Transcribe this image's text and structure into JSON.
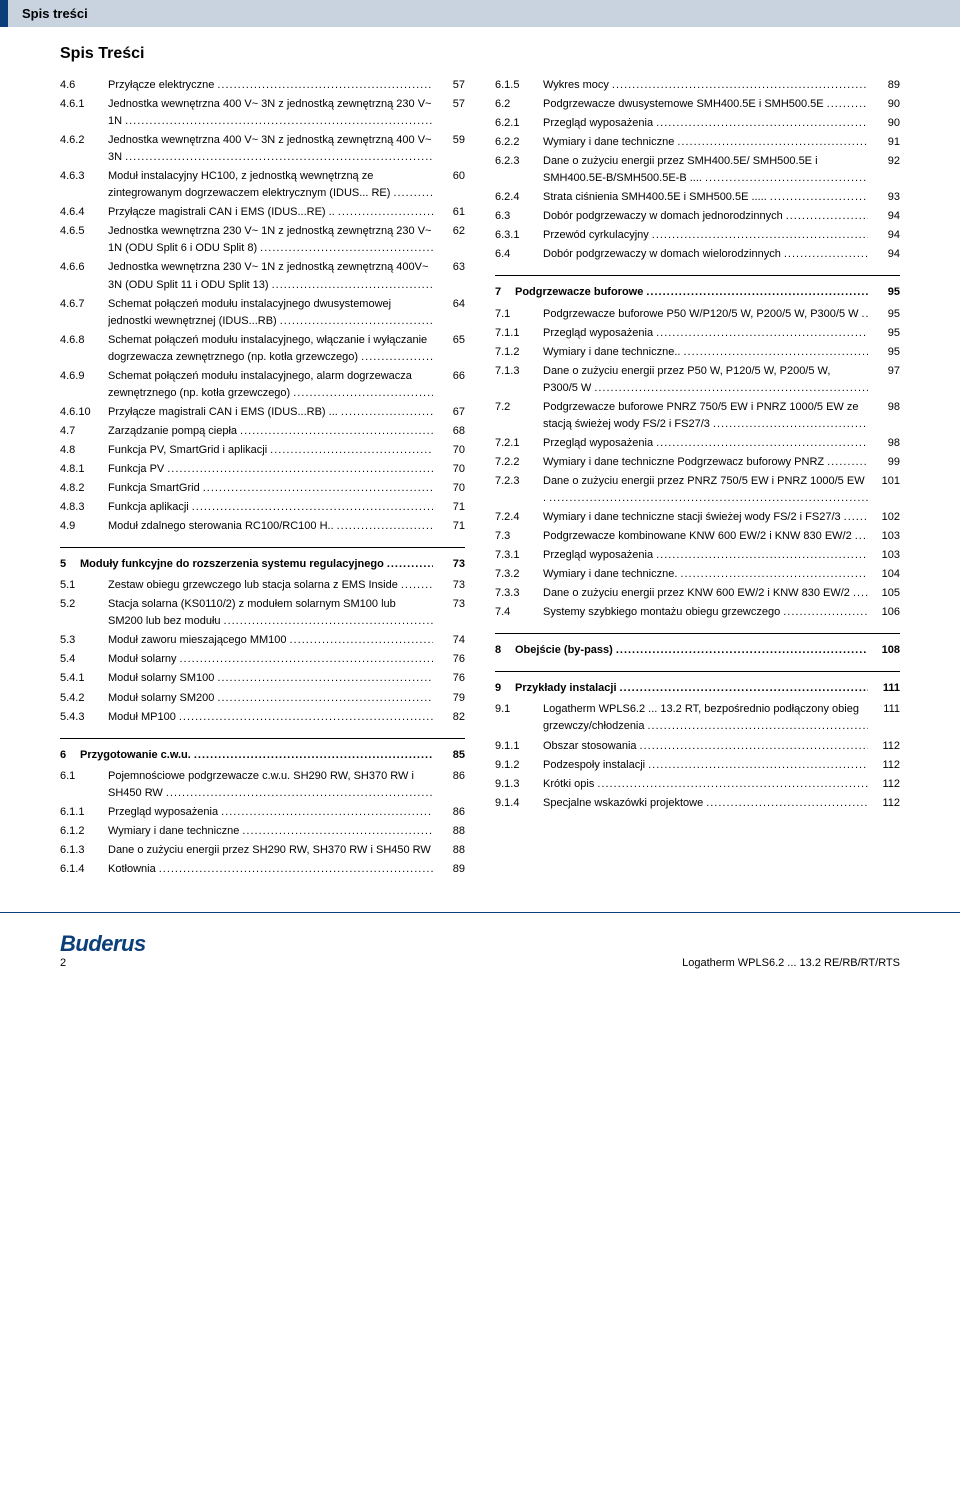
{
  "header": "Spis treści",
  "title": "Spis Treści",
  "left": [
    {
      "n": "4.6",
      "t": "Przyłącze elektryczne",
      "p": "57"
    },
    {
      "n": "4.6.1",
      "t": "Jednostka wewnętrzna 400 V~ 3N z jednostką zewnętrzną 230 V~ 1N",
      "p": "57"
    },
    {
      "n": "4.6.2",
      "t": "Jednostka wewnętrzna 400 V~ 3N z jednostką zewnętrzną 400 V~ 3N",
      "p": "59"
    },
    {
      "n": "4.6.3",
      "t": "Moduł instalacyjny HC100, z jednostką wewnętrzną ze zintegrowanym dogrzewaczem elektrycznym (IDUS... RE)",
      "p": "60"
    },
    {
      "n": "4.6.4",
      "t": "Przyłącze magistrali CAN i EMS (IDUS...RE) ..",
      "p": "61"
    },
    {
      "n": "4.6.5",
      "t": "Jednostka wewnętrzna 230 V~ 1N z jednostką zewnętrzną 230 V~ 1N (ODU Split 6 i ODU Split 8)",
      "p": "62"
    },
    {
      "n": "4.6.6",
      "t": "Jednostka wewnętrzna 230 V~ 1N z jednostką zewnętrzną 400V~ 3N (ODU Split 11 i ODU Split 13)",
      "p": "63"
    },
    {
      "n": "4.6.7",
      "t": "Schemat połączeń modułu instalacyjnego dwusystemowej jednostki wewnętrznej (IDUS...RB)",
      "p": "64"
    },
    {
      "n": "4.6.8",
      "t": "Schemat połączeń modułu instalacyjnego, włączanie i wyłączanie dogrzewacza zewnętrznego (np. kotła grzewczego)",
      "p": "65"
    },
    {
      "n": "4.6.9",
      "t": "Schemat połączeń modułu instalacyjnego, alarm dogrzewacza zewnętrznego (np. kotła grzewczego)",
      "p": "66"
    },
    {
      "n": "4.6.10",
      "t": "Przyłącze magistrali CAN i EMS (IDUS...RB) ...",
      "p": "67"
    },
    {
      "n": "4.7",
      "t": "Zarządzanie pompą ciepła",
      "p": "68"
    },
    {
      "n": "4.8",
      "t": "Funkcja PV, SmartGrid i aplikacji",
      "p": "70"
    },
    {
      "n": "4.8.1",
      "t": "Funkcja PV",
      "p": "70"
    },
    {
      "n": "4.8.2",
      "t": "Funkcja SmartGrid",
      "p": "70"
    },
    {
      "n": "4.8.3",
      "t": "Funkcja aplikacji",
      "p": "71"
    },
    {
      "n": "4.9",
      "t": "Moduł zdalnego sterowania RC100/RC100 H..",
      "p": "71"
    }
  ],
  "left_sec5": {
    "n": "5",
    "t": "Moduły funkcyjne do rozszerzenia systemu regulacyjnego",
    "p": "73"
  },
  "left5": [
    {
      "n": "5.1",
      "t": "Zestaw obiegu grzewczego lub stacja solarna z EMS Inside",
      "p": "73"
    },
    {
      "n": "5.2",
      "t": "Stacja solarna (KS0110/2) z modułem solarnym SM100 lub SM200 lub bez modułu",
      "p": "73"
    },
    {
      "n": "5.3",
      "t": "Moduł zaworu mieszającego MM100",
      "p": "74"
    },
    {
      "n": "5.4",
      "t": "Moduł solarny",
      "p": "76"
    },
    {
      "n": "5.4.1",
      "t": "Moduł solarny SM100",
      "p": "76"
    },
    {
      "n": "5.4.2",
      "t": "Moduł solarny SM200",
      "p": "79"
    },
    {
      "n": "5.4.3",
      "t": "Moduł MP100",
      "p": "82"
    }
  ],
  "left_sec6": {
    "n": "6",
    "t": "Przygotowanie c.w.u.",
    "p": "85"
  },
  "left6": [
    {
      "n": "6.1",
      "t": "Pojemnościowe podgrzewacze c.w.u. SH290 RW, SH370 RW i SH450 RW",
      "p": "86"
    },
    {
      "n": "6.1.1",
      "t": "Przegląd wyposażenia",
      "p": "86"
    },
    {
      "n": "6.1.2",
      "t": "Wymiary i dane techniczne",
      "p": "88"
    },
    {
      "n": "6.1.3",
      "t": "Dane o zużyciu energii przez SH290 RW, SH370 RW i SH450 RW",
      "p": "88"
    },
    {
      "n": "6.1.4",
      "t": "Kotłownia",
      "p": "89"
    }
  ],
  "right_top": [
    {
      "n": "6.1.5",
      "t": "Wykres mocy",
      "p": "89"
    },
    {
      "n": "6.2",
      "t": "Podgrzewacze dwusystemowe SMH400.5E i SMH500.5E",
      "p": "90"
    },
    {
      "n": "6.2.1",
      "t": "Przegląd wyposażenia",
      "p": "90"
    },
    {
      "n": "6.2.2",
      "t": "Wymiary i dane techniczne",
      "p": "91"
    },
    {
      "n": "6.2.3",
      "t": "Dane o zużyciu energii przez SMH400.5E/ SMH500.5E i SMH400.5E-B/SMH500.5E-B ....",
      "p": "92"
    },
    {
      "n": "6.2.4",
      "t": "Strata ciśnienia SMH400.5E i SMH500.5E .....",
      "p": "93"
    },
    {
      "n": "6.3",
      "t": "Dobór podgrzewaczy w domach jednorodzinnych",
      "p": "94"
    },
    {
      "n": "6.3.1",
      "t": "Przewód cyrkulacyjny",
      "p": "94"
    },
    {
      "n": "6.4",
      "t": "Dobór podgrzewaczy w domach wielorodzinnych",
      "p": "94"
    }
  ],
  "right_sec7": {
    "n": "7",
    "t": "Podgrzewacze buforowe",
    "p": "95"
  },
  "right7": [
    {
      "n": "7.1",
      "t": "Podgrzewacze buforowe P50 W/P120/5 W, P200/5 W, P300/5 W",
      "p": "95"
    },
    {
      "n": "7.1.1",
      "t": "Przegląd wyposażenia",
      "p": "95"
    },
    {
      "n": "7.1.2",
      "t": "Wymiary i dane techniczne..",
      "p": "95"
    },
    {
      "n": "7.1.3",
      "t": "Dane o zużyciu energii przez P50 W, P120/5 W, P200/5 W, P300/5 W",
      "p": "97"
    },
    {
      "n": "7.2",
      "t": "Podgrzewacze buforowe PNRZ 750/5 EW i PNRZ 1000/5 EW ze stacją świeżej wody FS/2 i FS27/3",
      "p": "98"
    },
    {
      "n": "7.2.1",
      "t": "Przegląd wyposażenia",
      "p": "98"
    },
    {
      "n": "7.2.2",
      "t": "Wymiary i dane techniczne Podgrzewacz buforowy PNRZ",
      "p": "99"
    },
    {
      "n": "7.2.3",
      "t": "Dane o zużyciu energii przez PNRZ 750/5 EW i PNRZ 1000/5 EW .",
      "p": "101"
    },
    {
      "n": "7.2.4",
      "t": "Wymiary i dane techniczne stacji świeżej wody FS/2 i FS27/3",
      "p": "102"
    },
    {
      "n": "7.3",
      "t": "Podgrzewacze kombinowane KNW 600 EW/2 i KNW 830 EW/2",
      "p": "103"
    },
    {
      "n": "7.3.1",
      "t": "Przegląd wyposażenia",
      "p": "103"
    },
    {
      "n": "7.3.2",
      "t": "Wymiary i dane techniczne.",
      "p": "104"
    },
    {
      "n": "7.3.3",
      "t": "Dane o zużyciu energii przez KNW 600 EW/2 i KNW 830 EW/2",
      "p": "105"
    },
    {
      "n": "7.4",
      "t": "Systemy szybkiego montażu obiegu grzewczego",
      "p": "106"
    }
  ],
  "right_sec8": {
    "n": "8",
    "t": "Obejście (by-pass)",
    "p": "108"
  },
  "right_sec9": {
    "n": "9",
    "t": "Przykłady instalacji",
    "p": "111"
  },
  "right9": [
    {
      "n": "9.1",
      "t": "Logatherm WPLS6.2 ... 13.2 RT, bezpośrednio podłączony obieg grzewczy/chłodzenia",
      "p": "111"
    },
    {
      "n": "9.1.1",
      "t": "Obszar stosowania",
      "p": "112"
    },
    {
      "n": "9.1.2",
      "t": "Podzespoły instalacji",
      "p": "112"
    },
    {
      "n": "9.1.3",
      "t": "Krótki opis",
      "p": "112"
    },
    {
      "n": "9.1.4",
      "t": "Specjalne wskazówki projektowe",
      "p": "112"
    }
  ],
  "footer": {
    "logo": "Buderus",
    "page": "2",
    "right": "Logatherm WPLS6.2 ... 13.2 RE/RB/RT/RTS"
  }
}
